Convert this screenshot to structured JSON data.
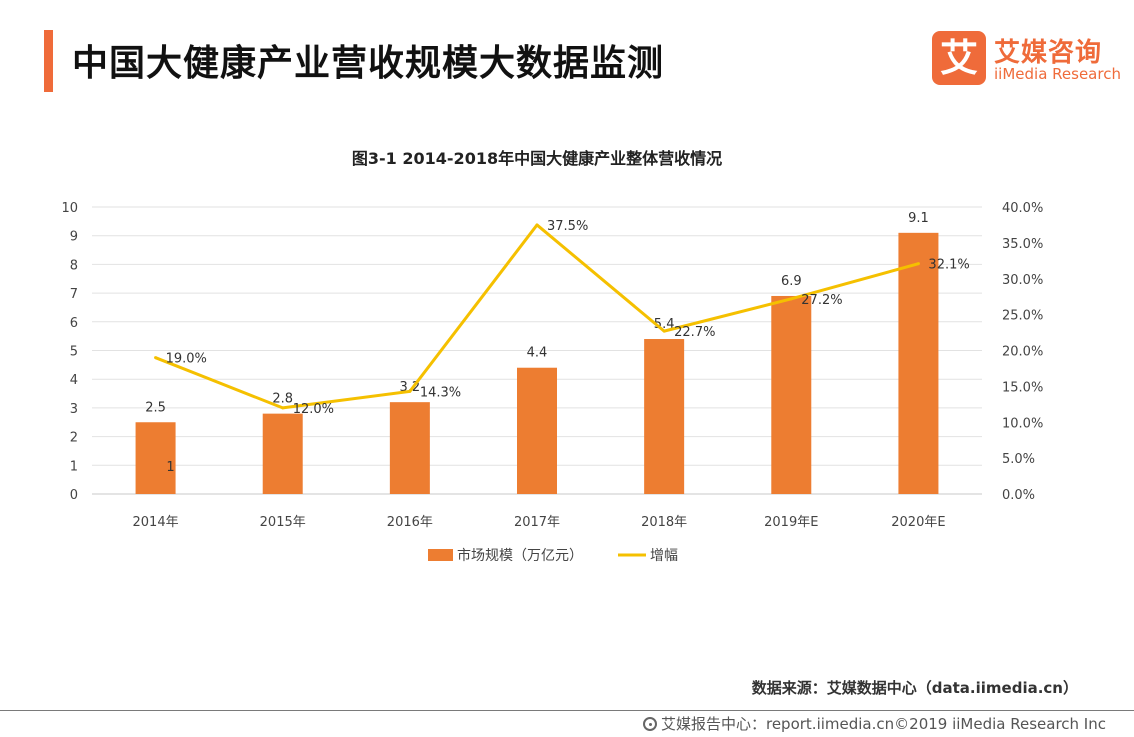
{
  "header": {
    "title": "中国大健康产业营收规模大数据监测"
  },
  "logo": {
    "mark": "艾",
    "name_cn": "艾媒咨询",
    "name_en": "iiMedia Research"
  },
  "chart_data": {
    "type": "bar",
    "title": "图3-1 2014-2018年中国大健康产业整体营收情况",
    "categories": [
      "2014年",
      "2015年",
      "2016年",
      "2017年",
      "2018年",
      "2019年E",
      "2020年E"
    ],
    "series": [
      {
        "name": "市场规模（万亿元）",
        "type": "bar",
        "axis": "left",
        "color": "#ed7d31",
        "values": [
          2.5,
          2.8,
          3.2,
          4.4,
          5.4,
          6.9,
          9.1
        ],
        "labels": [
          "2.5",
          "2.8",
          "3.2",
          "4.4",
          "5.4",
          "6.9",
          "9.1"
        ]
      },
      {
        "name": "增幅",
        "type": "line",
        "axis": "right",
        "color": "#f5c000",
        "values": [
          19.0,
          12.0,
          14.3,
          37.5,
          22.7,
          27.2,
          32.1
        ],
        "labels": [
          "19.0%",
          "12.0%",
          "14.3%",
          "37.5%",
          "22.7%",
          "27.2%",
          "32.1%"
        ]
      }
    ],
    "left_axis": {
      "min": 0,
      "max": 10,
      "ticks": [
        "0",
        "1",
        "2",
        "3",
        "4",
        "5",
        "6",
        "7",
        "8",
        "9",
        "10"
      ]
    },
    "right_axis": {
      "min": 0,
      "max": 40,
      "ticks": [
        "0.0%",
        "5.0%",
        "10.0%",
        "15.0%",
        "20.0%",
        "25.0%",
        "30.0%",
        "35.0%",
        "40.0%"
      ]
    },
    "stray_label": "1",
    "grid": true,
    "legend_position": "bottom"
  },
  "source": "数据来源：艾媒数据中心（data.iimedia.cn）",
  "footer": "艾媒报告中心：report.iimedia.cn©2019 iiMedia Research Inc"
}
